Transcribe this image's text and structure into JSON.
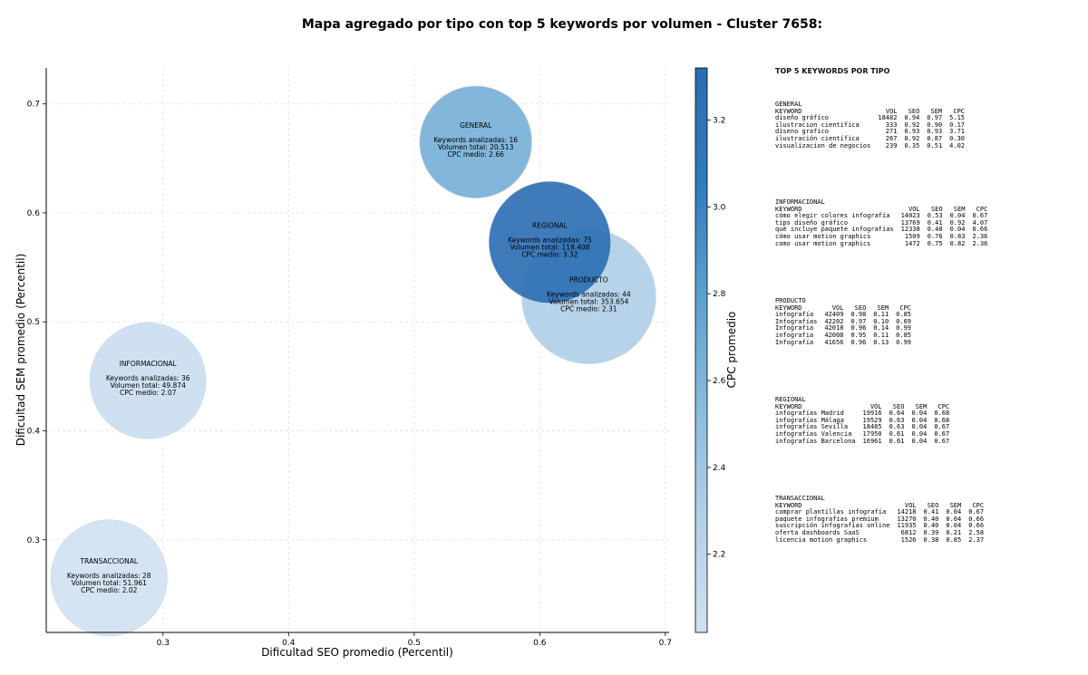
{
  "chart_data": {
    "type": "scatter",
    "title": "Mapa agregado por tipo con top 5 keywords por volumen - Cluster 7658:",
    "xlabel": "Dificultad SEO promedio (Percentil)",
    "ylabel": "Dificultad SEM promedio (Percentil)",
    "xlim": [
      0.207,
      0.703
    ],
    "ylim": [
      0.215,
      0.733
    ],
    "xticks": [
      "0.3",
      "0.4",
      "0.5",
      "0.6",
      "0.7"
    ],
    "yticks": [
      "0.3",
      "0.4",
      "0.5",
      "0.6",
      "0.7"
    ],
    "grid": true,
    "colorbar": {
      "label": "CPC promedio",
      "range": [
        2.02,
        3.32
      ],
      "ticks": [
        "2.2",
        "2.4",
        "2.6",
        "2.8",
        "3.0",
        "3.2"
      ],
      "colors": [
        "#d0e1f2",
        "#b3d0e8",
        "#89bbde",
        "#5b9fcd",
        "#2f7bbd",
        "#2a6db3"
      ]
    },
    "points": [
      {
        "type": "GENERAL",
        "x": 0.549,
        "y": 0.665,
        "keywords": "Keywords analizadas: 16",
        "volume": "Volumen total: 20.513",
        "cpc_label": "CPC medio: 2.66",
        "cpc": 2.66,
        "volumen": 20513
      },
      {
        "type": "REGIONAL",
        "x": 0.608,
        "y": 0.573,
        "keywords": "Keywords analizadas: 75",
        "volume": "Volumen total: 118.408",
        "cpc_label": "CPC medio: 3.32",
        "cpc": 3.32,
        "volumen": 118408
      },
      {
        "type": "PRODUCTO",
        "x": 0.639,
        "y": 0.523,
        "keywords": "Keywords analizadas: 44",
        "volume": "Volumen total: 353.654",
        "cpc_label": "CPC medio: 2.31",
        "cpc": 2.31,
        "volumen": 353654
      },
      {
        "type": "INFORMACIONAL",
        "x": 0.288,
        "y": 0.446,
        "keywords": "Keywords analizadas: 36",
        "volume": "Volumen total: 49.874",
        "cpc_label": "CPC medio: 2.07",
        "cpc": 2.07,
        "volumen": 49874
      },
      {
        "type": "TRANSACCIONAL",
        "x": 0.257,
        "y": 0.265,
        "keywords": "Keywords analizadas: 28",
        "volume": "Volumen total: 51.961",
        "cpc_label": "CPC medio: 2.02",
        "cpc": 2.02,
        "volumen": 51961
      }
    ]
  },
  "top5": {
    "title": "TOP 5 KEYWORDS POR TIPO",
    "header": [
      "KEYWORD",
      "VOL",
      "SEO",
      "SEM",
      "CPC"
    ],
    "groups": [
      {
        "type": "GENERAL",
        "rows": [
          [
            "diseño gráfico",
            "18482",
            "0.94",
            "0.97",
            "5.15"
          ],
          [
            "ilustracion cientifica",
            "333",
            "0.92",
            "0.90",
            "0.17"
          ],
          [
            "diseno grafico",
            "271",
            "0.93",
            "0.93",
            "3.71"
          ],
          [
            "ilustración científica",
            "267",
            "0.92",
            "0.87",
            "0.30"
          ],
          [
            "visualizacion de negocios",
            "239",
            "0.35",
            "0.51",
            "4.02"
          ]
        ]
      },
      {
        "type": "INFORMACIONAL",
        "rows": [
          [
            "cómo elegir colores infografía",
            "14023",
            "0.53",
            "0.04",
            "0.67"
          ],
          [
            "tips diseño gráfico",
            "13769",
            "0.41",
            "0.92",
            "4.07"
          ],
          [
            "qué incluye paquete infografías",
            "12338",
            "0.48",
            "0.04",
            "0.66"
          ],
          [
            "cómo usar motion graphics",
            "1509",
            "0.76",
            "0.83",
            "2.36"
          ],
          [
            "como usar motion graphics",
            "1472",
            "0.75",
            "0.82",
            "2.36"
          ]
        ]
      },
      {
        "type": "PRODUCTO",
        "rows": [
          [
            "infografía",
            "42409",
            "0.98",
            "0.11",
            "0.85"
          ],
          [
            "Infografías",
            "42202",
            "0.97",
            "0.10",
            "0.69"
          ],
          [
            "Infografia",
            "42018",
            "0.96",
            "0.14",
            "0.99"
          ],
          [
            "infografia",
            "42008",
            "0.95",
            "0.11",
            "0.85"
          ],
          [
            "Infografía",
            "41656",
            "0.96",
            "0.13",
            "0.99"
          ]
        ]
      },
      {
        "type": "REGIONAL",
        "rows": [
          [
            "infografías Madrid",
            "19916",
            "0.64",
            "0.04",
            "0.68"
          ],
          [
            "infografías Málaga",
            "19529",
            "0.63",
            "0.04",
            "0.68"
          ],
          [
            "infografías Sevilla",
            "18485",
            "0.63",
            "0.04",
            "0.67"
          ],
          [
            "infografías Valencia",
            "17950",
            "0.61",
            "0.04",
            "0.67"
          ],
          [
            "infografías Barcelona",
            "16961",
            "0.61",
            "0.04",
            "0.67"
          ]
        ]
      },
      {
        "type": "TRANSACCIONAL",
        "rows": [
          [
            "comprar plantillas infografía",
            "14218",
            "0.41",
            "0.04",
            "0.67"
          ],
          [
            "paquete infografías premium",
            "13270",
            "0.40",
            "0.04",
            "0.66"
          ],
          [
            "suscripción infografías online",
            "11935",
            "0.40",
            "0.04",
            "0.66"
          ],
          [
            "oferta dashboards SaaS",
            "6812",
            "0.39",
            "0.21",
            "2.58"
          ],
          [
            "licencia motion graphics",
            "1526",
            "0.38",
            "0.85",
            "2.37"
          ]
        ]
      }
    ]
  }
}
